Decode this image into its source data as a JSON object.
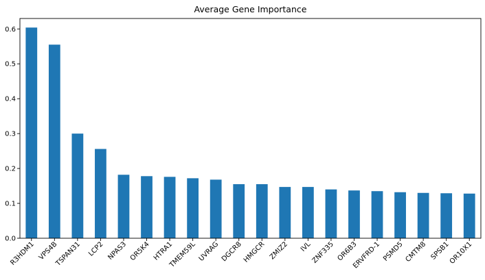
{
  "chart_data": {
    "type": "bar",
    "title": "Average Gene Importance",
    "xlabel": "",
    "ylabel": "",
    "categories": [
      "R3HDM1",
      "VPS4B",
      "TSPAN31",
      "LCP2",
      "NPAS3",
      "OR5K4",
      "HTRA1",
      "TMEM59L",
      "UVRAG",
      "DGCR8",
      "HMGCR",
      "ZMIZ2",
      "IVL",
      "ZNF335",
      "OR6B3",
      "ERVFRD-1",
      "PSMD5",
      "CMTM8",
      "SPSB1",
      "OR10X1"
    ],
    "values": [
      0.604,
      0.555,
      0.3,
      0.256,
      0.182,
      0.178,
      0.176,
      0.172,
      0.168,
      0.155,
      0.155,
      0.147,
      0.147,
      0.14,
      0.137,
      0.135,
      0.132,
      0.13,
      0.129,
      0.128
    ],
    "ylim": [
      0,
      0.63
    ],
    "yticks": [
      0.0,
      0.1,
      0.2,
      0.3,
      0.4,
      0.5,
      0.6
    ],
    "grid": false,
    "legend": "none",
    "colors": {
      "bar": "#1f77b4",
      "axis": "#000000"
    }
  }
}
